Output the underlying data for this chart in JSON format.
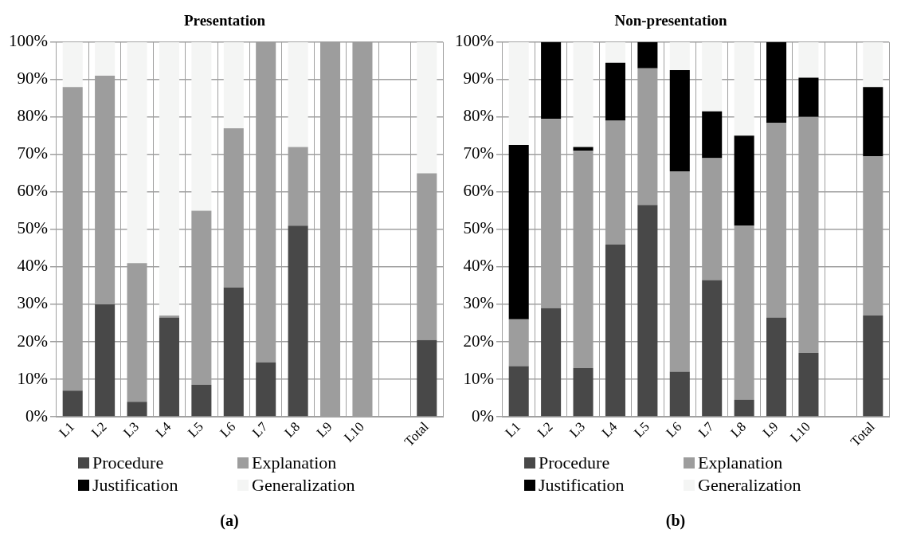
{
  "chart_data": [
    {
      "type": "bar",
      "title": "Presentation",
      "stacked": true,
      "categories": [
        "L1",
        "L2",
        "L3",
        "L4",
        "L5",
        "L6",
        "L7",
        "L8",
        "L9",
        "L10",
        null,
        "Total"
      ],
      "series": [
        {
          "name": "Procedure",
          "color": "#484848",
          "values": [
            7,
            30,
            4,
            26.5,
            8.5,
            34.5,
            14.5,
            51,
            0,
            0,
            null,
            20.5
          ]
        },
        {
          "name": "Explanation",
          "color": "#9d9d9d",
          "values": [
            81,
            61,
            37,
            0.5,
            46.5,
            42.5,
            85.5,
            21,
            100,
            100,
            null,
            44.5
          ]
        },
        {
          "name": "Justification",
          "color": "#000000",
          "values": [
            0,
            0,
            0,
            0,
            0,
            0,
            0,
            0,
            0,
            0,
            null,
            0
          ]
        },
        {
          "name": "Generalization",
          "color": "#f4f5f4",
          "values": [
            12,
            9,
            59,
            73,
            45,
            23,
            0,
            28,
            0,
            0,
            null,
            35
          ]
        }
      ],
      "ylim": [
        0,
        100
      ],
      "yticks": [
        {
          "value": 0,
          "label": "0%"
        },
        {
          "value": 10,
          "label": "10%"
        },
        {
          "value": 20,
          "label": "20%"
        },
        {
          "value": 30,
          "label": "30%"
        },
        {
          "value": 40,
          "label": "40%"
        },
        {
          "value": 50,
          "label": "50%"
        },
        {
          "value": 60,
          "label": "60%"
        },
        {
          "value": 70,
          "label": "70%"
        },
        {
          "value": 80,
          "label": "80%"
        },
        {
          "value": 90,
          "label": "90%"
        },
        {
          "value": 100,
          "label": "100%"
        }
      ],
      "grid": true,
      "legend": "bottom",
      "annotations": [
        "(a)"
      ]
    },
    {
      "type": "bar",
      "title": "Non-presentation",
      "stacked": true,
      "categories": [
        "L1",
        "L2",
        "L3",
        "L4",
        "L5",
        "L6",
        "L7",
        "L8",
        "L9",
        "L10",
        null,
        "Total"
      ],
      "series": [
        {
          "name": "Procedure",
          "color": "#484848",
          "values": [
            13.5,
            29,
            13,
            46,
            56.5,
            12,
            36.5,
            4.5,
            26.5,
            17,
            null,
            27
          ]
        },
        {
          "name": "Explanation",
          "color": "#9d9d9d",
          "values": [
            12.5,
            50.5,
            58,
            33,
            36.5,
            53.5,
            32.5,
            46.5,
            52,
            63,
            null,
            42.5
          ]
        },
        {
          "name": "Justification",
          "color": "#000000",
          "values": [
            46.5,
            20.5,
            1,
            15.5,
            7,
            27,
            12.5,
            24,
            21.5,
            10.5,
            null,
            18.5
          ]
        },
        {
          "name": "Generalization",
          "color": "#f4f5f4",
          "values": [
            27.5,
            0,
            28,
            5.5,
            0,
            7.5,
            18.5,
            25,
            0,
            9.5,
            null,
            12
          ]
        }
      ],
      "ylim": [
        0,
        100
      ],
      "yticks": [
        {
          "value": 0,
          "label": "0%"
        },
        {
          "value": 10,
          "label": "10%"
        },
        {
          "value": 20,
          "label": "20%"
        },
        {
          "value": 30,
          "label": "30%"
        },
        {
          "value": 40,
          "label": "40%"
        },
        {
          "value": 50,
          "label": "50%"
        },
        {
          "value": 60,
          "label": "60%"
        },
        {
          "value": 70,
          "label": "70%"
        },
        {
          "value": 80,
          "label": "80%"
        },
        {
          "value": 90,
          "label": "90%"
        },
        {
          "value": 100,
          "label": "100%"
        }
      ],
      "grid": true,
      "legend": "bottom",
      "annotations": [
        "(b)"
      ]
    }
  ]
}
